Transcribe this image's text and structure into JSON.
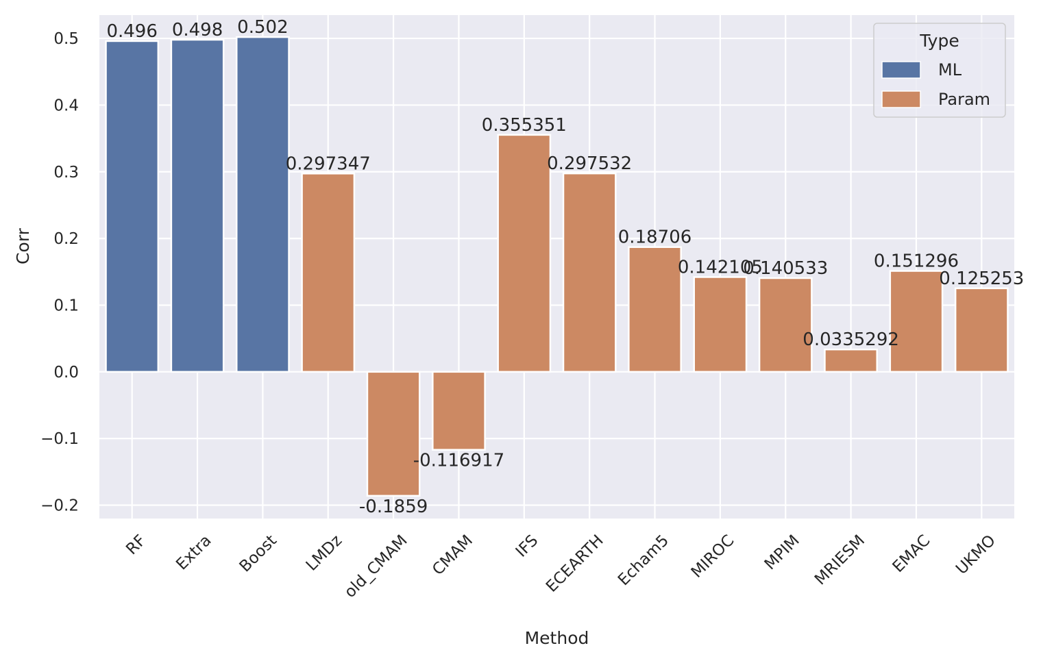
{
  "chart_data": {
    "type": "bar",
    "xlabel": "Method",
    "ylabel": "Corr",
    "ylim": [
      -0.22,
      0.535
    ],
    "yticks": [
      -0.2,
      -0.1,
      0.0,
      0.1,
      0.2,
      0.3,
      0.4,
      0.5
    ],
    "ytick_labels": [
      "−0.2",
      "−0.1",
      "0.0",
      "0.1",
      "0.2",
      "0.3",
      "0.4",
      "0.5"
    ],
    "grid": true,
    "legend": {
      "title": "Type",
      "placement": "top-right",
      "entries": [
        {
          "name": "ML",
          "color": "#5875a4"
        },
        {
          "name": "Param",
          "color": "#cc8963"
        }
      ]
    },
    "categories": [
      "RF",
      "Extra",
      "Boost",
      "LMDz",
      "old_CMAM",
      "CMAM",
      "IFS",
      "ECEARTH",
      "Echam5",
      "MIROC",
      "MPIM",
      "MRIESM",
      "EMAC",
      "UKMO"
    ],
    "types": [
      "ML",
      "ML",
      "ML",
      "Param",
      "Param",
      "Param",
      "Param",
      "Param",
      "Param",
      "Param",
      "Param",
      "Param",
      "Param",
      "Param"
    ],
    "values": [
      0.496,
      0.498,
      0.502,
      0.297347,
      -0.1859,
      -0.116917,
      0.355351,
      0.297532,
      0.18706,
      0.142105,
      0.140533,
      0.0335292,
      0.151296,
      0.125253
    ],
    "value_labels": [
      "0.496",
      "0.498",
      "0.502",
      "0.297347",
      "-0.1859",
      "-0.116917",
      "0.355351",
      "0.297532",
      "0.18706",
      "0.142105",
      "0.140533",
      "0.0335292",
      "0.151296",
      "0.125253"
    ],
    "colors": {
      "background": "#eaeaf2",
      "grid": "#ffffff"
    }
  }
}
